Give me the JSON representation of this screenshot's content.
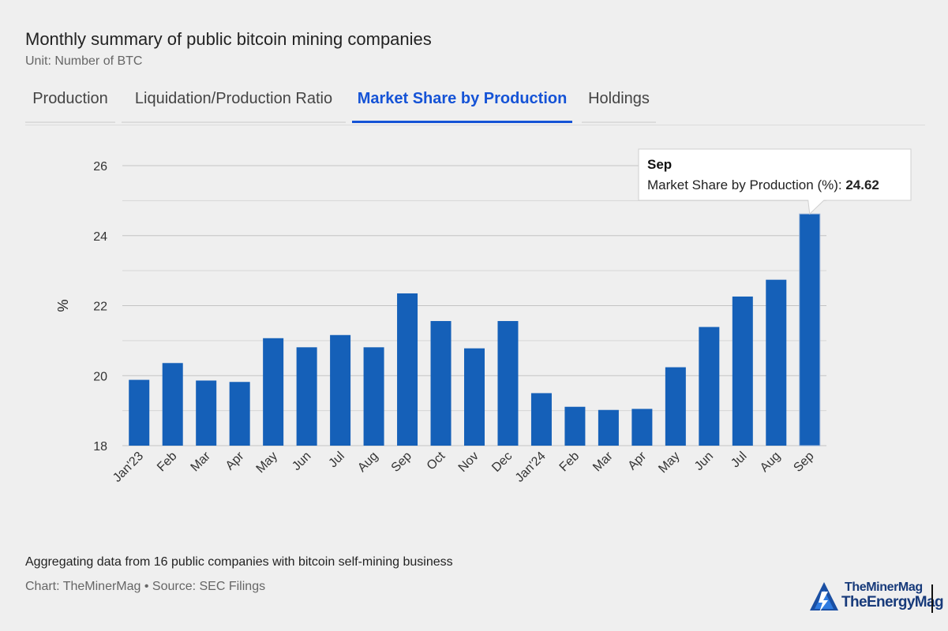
{
  "header": {
    "title": "Monthly summary of public bitcoin mining companies",
    "subtitle": "Unit: Number of BTC"
  },
  "tabs": [
    {
      "label": "Production",
      "active": false
    },
    {
      "label": "Liquidation/Production Ratio",
      "active": false
    },
    {
      "label": "Market Share by Production",
      "active": true
    },
    {
      "label": "Holdings",
      "active": false
    }
  ],
  "chart_data": {
    "type": "bar",
    "ylabel": "%",
    "ylim": [
      18,
      26.5
    ],
    "yticks": [
      18,
      20,
      22,
      24,
      26
    ],
    "grid": true,
    "bar_color": "#1560b8",
    "categories": [
      "Jan'23",
      "Feb",
      "Mar",
      "Apr",
      "May",
      "Jun",
      "Jul",
      "Aug",
      "Sep",
      "Oct",
      "Nov",
      "Dec",
      "Jan'24",
      "Feb",
      "Mar",
      "Apr",
      "May",
      "Jun",
      "Jul",
      "Aug",
      "Sep"
    ],
    "series": [
      {
        "values": [
          19.88,
          20.36,
          19.86,
          19.82,
          21.07,
          20.81,
          21.16,
          20.81,
          22.35,
          21.56,
          20.78,
          21.56,
          19.5,
          19.11,
          19.02,
          19.05,
          20.24,
          21.39,
          22.26,
          22.74,
          24.62
        ]
      }
    ],
    "tooltip": {
      "category": "Sep",
      "label": "Market Share by Production (%):",
      "value": "24.62"
    }
  },
  "footer": {
    "caption": "Aggregating data from 16 public companies with bitcoin self-mining business",
    "credit": "Chart: TheMinerMag • Source: SEC Filings"
  },
  "logo": {
    "line1": "TheMinerMag",
    "line2": "TheEnergyMag"
  }
}
